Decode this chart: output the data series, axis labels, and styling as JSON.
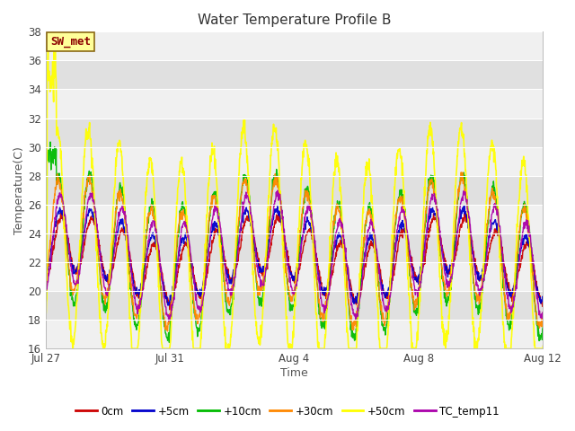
{
  "title": "Water Temperature Profile B",
  "xlabel": "Time",
  "ylabel": "Temperature(C)",
  "ylim": [
    16,
    38
  ],
  "yticks": [
    16,
    18,
    20,
    22,
    24,
    26,
    28,
    30,
    32,
    34,
    36,
    38
  ],
  "series_order": [
    "0cm",
    "+5cm",
    "+10cm",
    "+30cm",
    "+50cm",
    "TC_temp11"
  ],
  "series": {
    "0cm": {
      "color": "#cc0000",
      "lw": 1.0
    },
    "+5cm": {
      "color": "#0000cc",
      "lw": 1.0
    },
    "+10cm": {
      "color": "#00bb00",
      "lw": 1.0
    },
    "+30cm": {
      "color": "#ff8800",
      "lw": 1.0
    },
    "+50cm": {
      "color": "#ffff00",
      "lw": 1.2
    },
    "TC_temp11": {
      "color": "#aa00aa",
      "lw": 1.0
    }
  },
  "xtick_labels": [
    "Jul 27",
    "Jul 31",
    "Aug 4",
    "Aug 8",
    "Aug 12"
  ],
  "xtick_positions": [
    0,
    4,
    8,
    12,
    16
  ],
  "n_days": 17,
  "plot_bg_light": "#f0f0f0",
  "plot_bg_dark": "#e0e0e0",
  "annotation_text": "SW_met",
  "annotation_color": "#8b0000",
  "annotation_bg": "#ffff99",
  "annotation_border": "#8b6914",
  "legend_labels": [
    "0cm",
    "+5cm",
    "+10cm",
    "+30cm",
    "+50cm",
    "TC_temp11"
  ],
  "legend_colors": [
    "#cc0000",
    "#0000cc",
    "#00bb00",
    "#ff8800",
    "#ffff00",
    "#aa00aa"
  ]
}
